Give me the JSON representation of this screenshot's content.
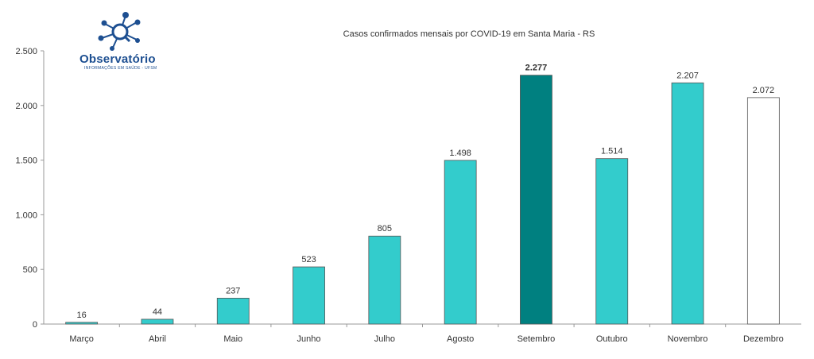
{
  "logo": {
    "name": "Observatório",
    "subtitle": "INFORMAÇÕES EM SAÚDE - UFSM"
  },
  "chart_data": {
    "type": "bar",
    "title": "Casos confirmados mensais por COVID-19 em Santa Maria - RS",
    "xlabel": "",
    "ylabel": "",
    "categories": [
      "Março",
      "Abril",
      "Maio",
      "Junho",
      "Julho",
      "Agosto",
      "Setembro",
      "Outubro",
      "Novembro",
      "Dezembro"
    ],
    "values": [
      16,
      44,
      237,
      523,
      805,
      1498,
      2277,
      1514,
      2207,
      2072
    ],
    "value_labels": [
      "16",
      "44",
      "237",
      "523",
      "805",
      "1.498",
      "2.277",
      "1.514",
      "2.207",
      "2.072"
    ],
    "ylim": [
      0,
      2500
    ],
    "yticks": [
      0,
      500,
      1000,
      1500,
      2000,
      2500
    ],
    "ytick_labels": [
      "0",
      "500",
      "1.000",
      "1.500",
      "2.000",
      "2.500"
    ],
    "grid": false,
    "legend": "none",
    "colors": {
      "default": "#33cccc",
      "highlight": "#008080",
      "partial_fill": "#ffffff",
      "border": "#555555",
      "axis": "#999999",
      "text": "#333333"
    },
    "bar_styles": [
      "default",
      "default",
      "default",
      "default",
      "default",
      "default",
      "highlight",
      "default",
      "default",
      "partial_fill"
    ]
  }
}
